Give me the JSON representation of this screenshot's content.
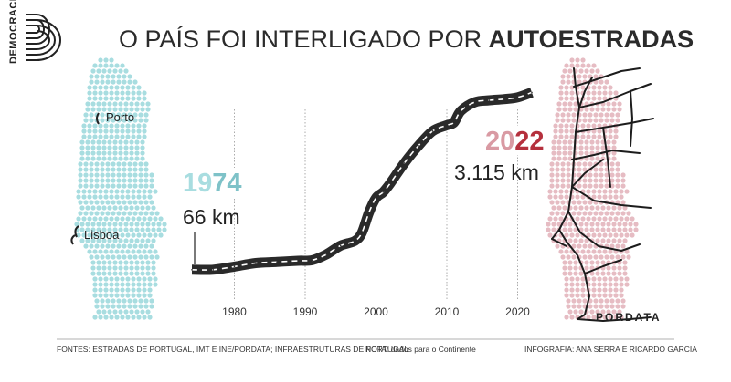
{
  "brand": {
    "logo_text": "DEMOCRACIA",
    "pordata": "PORDATA"
  },
  "title": {
    "regular": "O PAÍS FOI INTERLIGADO POR ",
    "bold": "AUTOESTRADAS"
  },
  "cities": {
    "porto": "Porto",
    "lisboa": "Lisboa"
  },
  "callouts": {
    "start": {
      "year_part1": "19",
      "year_part2": "74",
      "km": "66 km"
    },
    "end": {
      "year_part1": "20",
      "year_part2": "22",
      "km": "3.115 km"
    }
  },
  "colors": {
    "teal_map": "#a8dde0",
    "teal_text": "#7ec2c8",
    "pink_map": "#e6bcc3",
    "red_text": "#b5303d",
    "road": "#2a2a2a",
    "road_dash": "#ffffff",
    "gridline": "#888888"
  },
  "footer": {
    "sources": "FONTES: ESTRADAS DE PORTUGAL, IMT E INE/PORDATA; INFRAESTRUTURAS DE PORTUGAL",
    "note": "NOTA: dados para o Continente",
    "credits": "INFOGRAFIA: ANA SERRA E RICARDO GARCIA"
  },
  "chart_data": {
    "type": "line",
    "title": "O PAÍS FOI INTERLIGADO POR AUTOESTRADAS",
    "xlabel": "",
    "ylabel": "",
    "x_ticks": [
      1980,
      1990,
      2000,
      2010,
      2020
    ],
    "xlim": [
      1974,
      2022
    ],
    "ylim": [
      0,
      3200
    ],
    "grid": "vertical",
    "series": [
      {
        "x": [
          1974,
          1977,
          1980,
          1983,
          1986,
          1989,
          1991,
          1993,
          1995,
          1997,
          1998,
          1999,
          2000,
          2001,
          2002,
          2004,
          2006,
          2008,
          2010,
          2011,
          2012,
          2014,
          2016,
          2018,
          2020,
          2022
        ],
        "values": [
          66,
          66,
          120,
          180,
          200,
          220,
          230,
          330,
          480,
          560,
          700,
          1050,
          1300,
          1400,
          1550,
          1900,
          2200,
          2450,
          2550,
          2600,
          2800,
          2950,
          2980,
          3000,
          3030,
          3115
        ]
      }
    ],
    "annotations": [
      "1974 66 km",
      "2022 3.115 km"
    ]
  }
}
